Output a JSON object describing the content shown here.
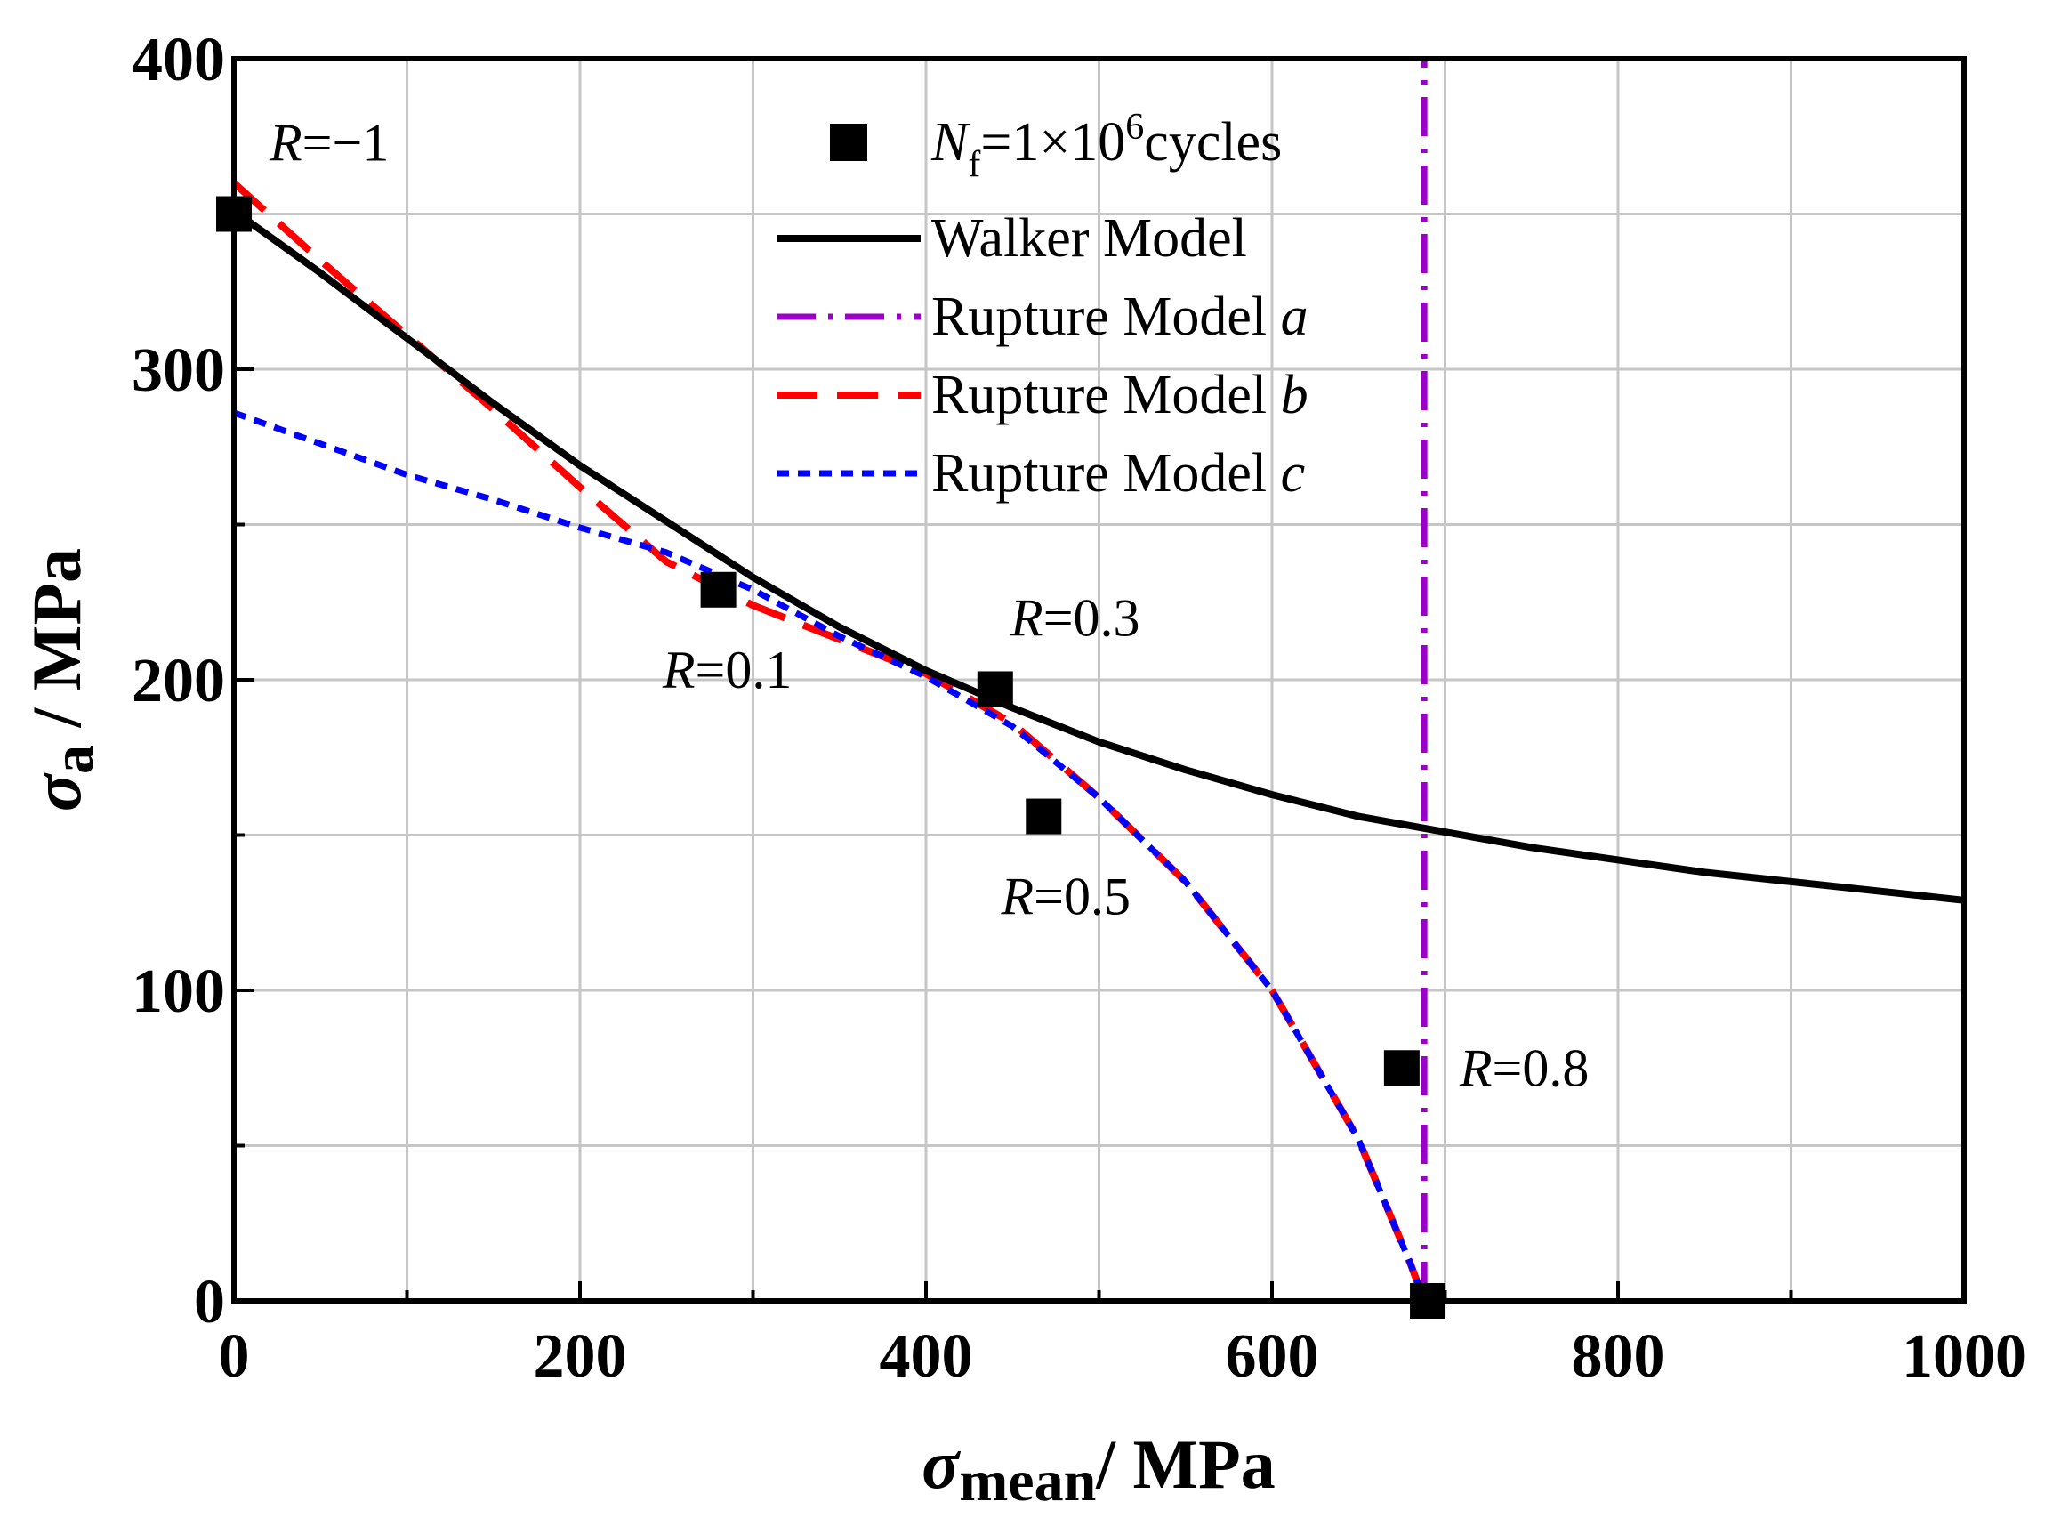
{
  "chart_data": {
    "type": "line",
    "title": "",
    "xlabel": {
      "symbol": "σ",
      "subscript": "mean",
      "unit": "/ MPa"
    },
    "ylabel": {
      "symbol": "σ",
      "subscript": "a",
      "unit": " / MPa"
    },
    "xlim": [
      0,
      1000
    ],
    "ylim": [
      0,
      400
    ],
    "x_ticks": [
      0,
      200,
      400,
      600,
      800,
      1000
    ],
    "y_ticks": [
      0,
      100,
      200,
      300,
      400
    ],
    "grid": true,
    "legend_position": "top-center",
    "legend": [
      {
        "key": "exp",
        "label_parts": [
          "N",
          "f",
          "=1×10",
          "6",
          "cycles"
        ]
      },
      {
        "key": "walker",
        "label": "Walker Model"
      },
      {
        "key": "rupture_a",
        "label": "Rupture Model ",
        "italic_suffix": "a"
      },
      {
        "key": "rupture_b",
        "label": "Rupture Model ",
        "italic_suffix": "b"
      },
      {
        "key": "rupture_c",
        "label": "Rupture Model ",
        "italic_suffix": "c"
      }
    ],
    "colors": {
      "walker": "#000000",
      "rupture_a": "#9a00c8",
      "rupture_b": "#ff0000",
      "rupture_c": "#0000ff",
      "exp": "#000000",
      "grid": "#c6c6c6"
    },
    "experimental_points": [
      {
        "x": 0,
        "y": 350,
        "label_var": "R",
        "label_val": "=−1"
      },
      {
        "x": 280,
        "y": 229,
        "label_var": "R",
        "label_val": "=0.1"
      },
      {
        "x": 440,
        "y": 197,
        "label_var": "R",
        "label_val": "=0.3"
      },
      {
        "x": 468,
        "y": 156,
        "label_var": "R",
        "label_val": "=0.5"
      },
      {
        "x": 675,
        "y": 75,
        "label_var": "R",
        "label_val": "=0.8"
      },
      {
        "x": 690,
        "y": 0,
        "label_var": "",
        "label_val": ""
      }
    ],
    "series": [
      {
        "name": "Walker Model",
        "key": "walker",
        "x": [
          0,
          50,
          100,
          150,
          200,
          250,
          300,
          350,
          400,
          450,
          500,
          550,
          600,
          650,
          700,
          750,
          800,
          850,
          900,
          950,
          1000
        ],
        "y": [
          351,
          331,
          310,
          289,
          269,
          251,
          233,
          217,
          203,
          191,
          180,
          171,
          163,
          156,
          151,
          146,
          142,
          138,
          135,
          132,
          129
        ]
      },
      {
        "name": "Rupture Model a",
        "key": "rupture_a",
        "x": [
          688,
          688
        ],
        "y": [
          0,
          400
        ]
      },
      {
        "name": "Rupture Model b",
        "key": "rupture_b",
        "x": [
          0,
          50,
          100,
          150,
          200,
          250,
          300,
          350,
          400,
          450,
          500,
          550,
          600,
          650,
          680,
          688
        ],
        "y": [
          360,
          335,
          311,
          287,
          262,
          238,
          224,
          213,
          202,
          186,
          162,
          135,
          100,
          52,
          12,
          0
        ]
      },
      {
        "name": "Rupture Model c",
        "key": "rupture_c",
        "x": [
          0,
          50,
          100,
          150,
          200,
          250,
          300,
          350,
          400,
          450,
          500,
          550,
          600,
          650,
          680,
          688
        ],
        "y": [
          286,
          276,
          266,
          258,
          249,
          241,
          229,
          214,
          201,
          185,
          162,
          135,
          100,
          52,
          12,
          0
        ]
      }
    ]
  }
}
